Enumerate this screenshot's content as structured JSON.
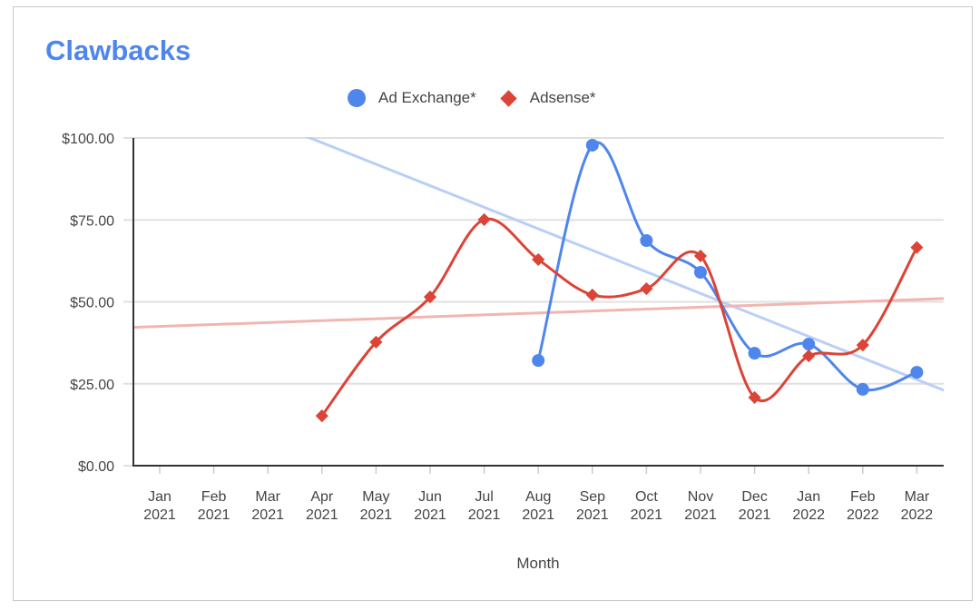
{
  "chart_data": {
    "type": "line",
    "title": "Clawbacks",
    "xlabel": "Month",
    "ylabel": "",
    "ylim": [
      0,
      100
    ],
    "yticks": [
      "$0.00",
      "$25.00",
      "$50.00",
      "$75.00",
      "$100.00"
    ],
    "ytick_values": [
      0,
      25,
      50,
      75,
      100
    ],
    "grid": true,
    "legend_position": "top",
    "smooth": true,
    "categories": [
      {
        "month": "Jan",
        "year": "2021"
      },
      {
        "month": "Feb",
        "year": "2021"
      },
      {
        "month": "Mar",
        "year": "2021"
      },
      {
        "month": "Apr",
        "year": "2021"
      },
      {
        "month": "May",
        "year": "2021"
      },
      {
        "month": "Jun",
        "year": "2021"
      },
      {
        "month": "Jul",
        "year": "2021"
      },
      {
        "month": "Aug",
        "year": "2021"
      },
      {
        "month": "Sep",
        "year": "2021"
      },
      {
        "month": "Oct",
        "year": "2021"
      },
      {
        "month": "Nov",
        "year": "2021"
      },
      {
        "month": "Dec",
        "year": "2021"
      },
      {
        "month": "Jan",
        "year": "2022"
      },
      {
        "month": "Feb",
        "year": "2022"
      },
      {
        "month": "Mar",
        "year": "2022"
      }
    ],
    "series": [
      {
        "name": "Ad Exchange*",
        "color": "#4f86ec",
        "marker": "circle",
        "values": [
          null,
          null,
          null,
          null,
          null,
          null,
          null,
          32.1,
          97.8,
          68.7,
          59.0,
          34.3,
          37.1,
          23.3,
          28.5
        ],
        "trendline": {
          "color": "#b9cff7",
          "start": {
            "x_index": -0.2,
            "value": 119.6
          },
          "end": {
            "x_index": 14.5,
            "value": 23.0
          }
        }
      },
      {
        "name": "Adsense*",
        "color": "#db4437",
        "marker": "diamond",
        "values": [
          null,
          null,
          null,
          15.2,
          37.7,
          51.5,
          75.1,
          62.9,
          52.1,
          54.0,
          64.0,
          20.8,
          33.5,
          36.8,
          66.6
        ],
        "trendline": {
          "color": "#f1b6b0",
          "start": {
            "x_index": -0.5,
            "value": 42.2
          },
          "end": {
            "x_index": 14.5,
            "value": 51.0
          }
        }
      }
    ]
  },
  "legend": {
    "items": [
      {
        "label": "Ad Exchange*",
        "color": "#4f86ec"
      },
      {
        "label": "Adsense*",
        "color": "#db4437"
      }
    ]
  }
}
